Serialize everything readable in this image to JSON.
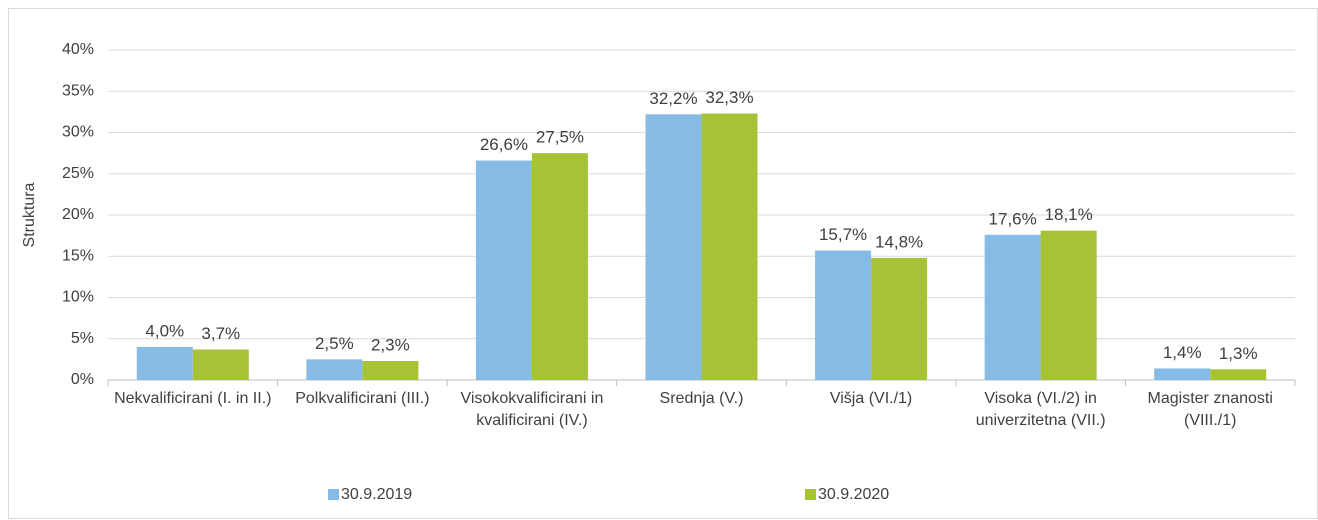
{
  "chart_data": {
    "type": "bar",
    "y_label": "Struktura",
    "categories": [
      "Nekvalificirani (I. in II.)",
      "Polkvalificirani (III.)",
      "Visokokvalificirani in kvalificirani (IV.)",
      "Srednja (V.)",
      "Višja (VI./1)",
      "Visoka (VI./2) in univerzitetna (VII.)",
      "Magister znanosti (VIII./1)"
    ],
    "series": [
      {
        "name": "30.9.2019",
        "color": "#85bbe5",
        "values": [
          4.0,
          2.5,
          26.6,
          32.2,
          15.7,
          17.6,
          1.4
        ],
        "value_labels": [
          "4,0%",
          "2,5%",
          "26,6%",
          "32,2%",
          "15,7%",
          "17,6%",
          "1,4%"
        ]
      },
      {
        "name": "30.9.2020",
        "color": "#a5c334",
        "values": [
          3.7,
          2.3,
          27.5,
          32.3,
          14.8,
          18.1,
          1.3
        ],
        "value_labels": [
          "3,7%",
          "2,3%",
          "27,5%",
          "32,3%",
          "14,8%",
          "18,1%",
          "1,3%"
        ]
      }
    ],
    "ylim": [
      0,
      40
    ],
    "yticks": [
      {
        "value": 0,
        "label": "0%"
      },
      {
        "value": 5,
        "label": "5%"
      },
      {
        "value": 10,
        "label": "10%"
      },
      {
        "value": 15,
        "label": "15%"
      },
      {
        "value": 20,
        "label": "20%"
      },
      {
        "value": 25,
        "label": "25%"
      },
      {
        "value": 30,
        "label": "30%"
      },
      {
        "value": 35,
        "label": "35%"
      },
      {
        "value": 40,
        "label": "40%"
      }
    ],
    "grid": true,
    "legend": "bottom"
  }
}
